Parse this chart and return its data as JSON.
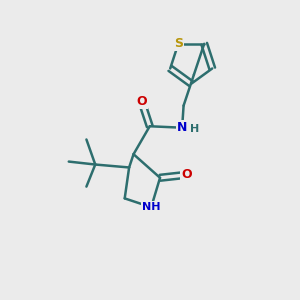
{
  "background_color": "#ebebeb",
  "bond_color": "#2d6e6e",
  "bond_width": 1.8,
  "atom_colors": {
    "S": "#b8960c",
    "N": "#0000cc",
    "O": "#cc0000",
    "C": "#2d6e6e",
    "H": "#2d6e6e"
  },
  "figsize": [
    3.0,
    3.0
  ],
  "dpi": 100
}
